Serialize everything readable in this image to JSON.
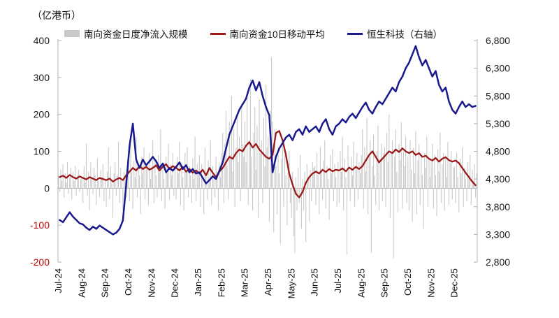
{
  "title": "（亿港币）",
  "legend": {
    "items": [
      {
        "label": "南向资金日度净流入规模",
        "type": "bar",
        "color": "#c9c9c9"
      },
      {
        "label": "南向资金10日移动平均",
        "type": "line",
        "color": "#9a1a1a"
      },
      {
        "label": "恒生科技（右轴）",
        "type": "line",
        "color": "#1a1a8e"
      }
    ]
  },
  "chart_data": {
    "type": "combo",
    "title": "（亿港币）",
    "grid": "off",
    "x_categories": [
      "Jul-24",
      "Aug-24",
      "Sep-24",
      "Oct-24",
      "Nov-24",
      "Dec-24",
      "Jan-25",
      "Feb-25",
      "Mar-25",
      "Apr-25",
      "May-25",
      "Jun-25",
      "Jul-25",
      "Aug-25",
      "Sep-25",
      "Oct-25",
      "Nov-25",
      "Dec-25"
    ],
    "left_axis": {
      "range": [
        -200,
        400
      ],
      "ticks": [
        400,
        300,
        200,
        100,
        0,
        -100,
        -200
      ],
      "tick_color": "#1a1a1a",
      "negative_tick_color": "#c00000"
    },
    "right_axis": {
      "range": [
        2800,
        6800
      ],
      "ticks": [
        "6,800",
        "6,300",
        "5,800",
        "5,300",
        "4,800",
        "4,300",
        "3,800",
        "3,300",
        "2,800"
      ],
      "tick_color": "#1a1a1a"
    },
    "series": [
      {
        "name": "南向资金日度净流入规模",
        "type": "bar",
        "axis": "left",
        "color": "#c9c9c9",
        "points_per_month": 21,
        "values": [
          35,
          -10,
          50,
          20,
          65,
          -25,
          40,
          15,
          70,
          -15,
          30,
          55,
          -30,
          45,
          20,
          60,
          -20,
          35,
          50,
          -10,
          25,
          30,
          -40,
          60,
          15,
          120,
          -20,
          45,
          -60,
          70,
          25,
          -15,
          55,
          35,
          -45,
          80,
          20,
          -25,
          50,
          30,
          65,
          -35,
          25,
          -50,
          45,
          110,
          -30,
          60,
          15,
          -80,
          40,
          70,
          -20,
          35,
          125,
          -40,
          55,
          20,
          -60,
          45,
          30,
          -25,
          60,
          90,
          -35,
          120,
          45,
          -55,
          75,
          30,
          140,
          -25,
          60,
          35,
          -70,
          85,
          40,
          110,
          -30,
          55,
          70,
          -45,
          95,
          25,
          60,
          130,
          -40,
          75,
          35,
          -25,
          90,
          45,
          160,
          -35,
          70,
          25,
          -55,
          85,
          40,
          120,
          -30,
          65,
          35,
          95,
          -20,
          55,
          -30,
          85,
          40,
          125,
          -45,
          70,
          30,
          -60,
          95,
          45,
          110,
          -25,
          60,
          35,
          -40,
          80,
          25,
          140,
          -35,
          65,
          45,
          90,
          -50,
          65,
          30,
          -70,
          110,
          40,
          -30,
          75,
          25,
          130,
          -45,
          60,
          35,
          -25,
          85,
          45,
          -60,
          70,
          30,
          95,
          150,
          -40,
          120,
          210,
          60,
          -30,
          180,
          90,
          250,
          45,
          160,
          -50,
          110,
          200,
          70,
          140,
          -35,
          230,
          120,
          85,
          180,
          70,
          260,
          -45,
          130,
          295,
          85,
          -60,
          150,
          220,
          50,
          170,
          -80,
          240,
          95,
          130,
          -40,
          190,
          60,
          280,
          110,
          140,
          -90,
          210,
          355,
          180,
          -120,
          160,
          60,
          -70,
          110,
          40,
          -150,
          80,
          130,
          -50,
          90,
          35,
          -100,
          60,
          100,
          -40,
          -80,
          45,
          -130,
          -175,
          30,
          -60,
          55,
          -40,
          90,
          -110,
          25,
          -60,
          45,
          -145,
          65,
          30,
          -90,
          50,
          -35,
          70,
          55,
          60,
          -45,
          95,
          35,
          -70,
          110,
          45,
          -30,
          75,
          130,
          -55,
          60,
          25,
          -85,
          90,
          40,
          105,
          -35,
          65,
          30,
          -50,
          70,
          -40,
          100,
          45,
          140,
          -60,
          80,
          30,
          -180,
          115,
          50,
          -35,
          85,
          35,
          125,
          -50,
          60,
          95,
          -30,
          70,
          40,
          90,
          160,
          -55,
          110,
          45,
          190,
          -70,
          85,
          130,
          -175,
          60,
          145,
          35,
          -45,
          100,
          170,
          -60,
          80,
          120,
          -35,
          95,
          110,
          -50,
          150,
          70,
          200,
          -80,
          95,
          130,
          -190,
          85,
          160,
          45,
          -65,
          120,
          75,
          180,
          -55,
          100,
          60,
          140,
          -40,
          85,
          -60,
          130,
          50,
          -90,
          110,
          40,
          155,
          -70,
          75,
          120,
          -45,
          90,
          35,
          -110,
          95,
          55,
          140,
          -50,
          80,
          30,
          70,
          120,
          -55,
          90,
          35,
          -75,
          105,
          45,
          150,
          -40,
          65,
          95,
          -60,
          80,
          30,
          125,
          -45,
          70,
          100,
          -30,
          55,
          60,
          -40,
          95,
          30,
          -65,
          80,
          40,
          110,
          -50,
          55,
          25,
          -35,
          70,
          35,
          90,
          -45,
          50,
          20,
          65,
          -25,
          40
        ]
      },
      {
        "name": "南向资金10日移动平均",
        "type": "line",
        "axis": "left",
        "color": "#9a1a1a",
        "stroke_width": 2.3,
        "points_per_month": 7,
        "values": [
          30,
          34,
          28,
          36,
          30,
          26,
          32,
          28,
          24,
          30,
          26,
          22,
          28,
          25,
          22,
          26,
          18,
          24,
          28,
          22,
          35,
          45,
          55,
          48,
          60,
          52,
          58,
          50,
          55,
          62,
          48,
          58,
          65,
          52,
          60,
          55,
          48,
          58,
          45,
          52,
          42,
          48,
          40,
          50,
          35,
          55,
          42,
          30,
          45,
          55,
          70,
          85,
          80,
          95,
          105,
          100,
          115,
          125,
          110,
          120,
          105,
          95,
          85,
          80,
          90,
          150,
          155,
          130,
          90,
          40,
          10,
          -15,
          -25,
          -10,
          15,
          30,
          40,
          45,
          40,
          50,
          44,
          52,
          46,
          50,
          48,
          54,
          46,
          56,
          50,
          58,
          52,
          60,
          75,
          90,
          100,
          85,
          70,
          80,
          90,
          100,
          95,
          105,
          98,
          108,
          100,
          95,
          100,
          90,
          95,
          85,
          88,
          80,
          75,
          82,
          72,
          80,
          84,
          76,
          72,
          75,
          68,
          55,
          42,
          30,
          18,
          8
        ]
      },
      {
        "name": "恒生科技（右轴）",
        "type": "line",
        "axis": "right",
        "color": "#1a1a8e",
        "stroke_width": 2.5,
        "points_per_month": 7,
        "values": [
          3560,
          3520,
          3610,
          3700,
          3620,
          3560,
          3500,
          3480,
          3420,
          3380,
          3440,
          3400,
          3460,
          3420,
          3380,
          3340,
          3300,
          3330,
          3400,
          3550,
          4200,
          4900,
          5300,
          4650,
          4500,
          4650,
          4550,
          4620,
          4700,
          4620,
          4500,
          4580,
          4420,
          4500,
          4450,
          4520,
          4600,
          4480,
          4550,
          4420,
          4480,
          4400,
          4420,
          4320,
          4220,
          4280,
          4350,
          4300,
          4450,
          4600,
          4850,
          5100,
          5250,
          5400,
          5550,
          5650,
          5750,
          5950,
          6080,
          5900,
          6050,
          5800,
          5600,
          5450,
          4420,
          4700,
          4850,
          4950,
          5050,
          5100,
          5000,
          5150,
          5200,
          5100,
          5250,
          5150,
          5200,
          5250,
          5150,
          5300,
          5380,
          5200,
          5100,
          5250,
          5300,
          5380,
          5320,
          5420,
          5480,
          5400,
          5500,
          5600,
          5680,
          5550,
          5480,
          5600,
          5700,
          5650,
          5750,
          5850,
          5950,
          5880,
          6050,
          6150,
          6300,
          6400,
          6550,
          6700,
          6500,
          6350,
          6450,
          6300,
          6150,
          6250,
          6000,
          5880,
          5950,
          5700,
          5550,
          5480,
          5600,
          5700,
          5600,
          5650,
          5600,
          5620
        ]
      }
    ]
  }
}
